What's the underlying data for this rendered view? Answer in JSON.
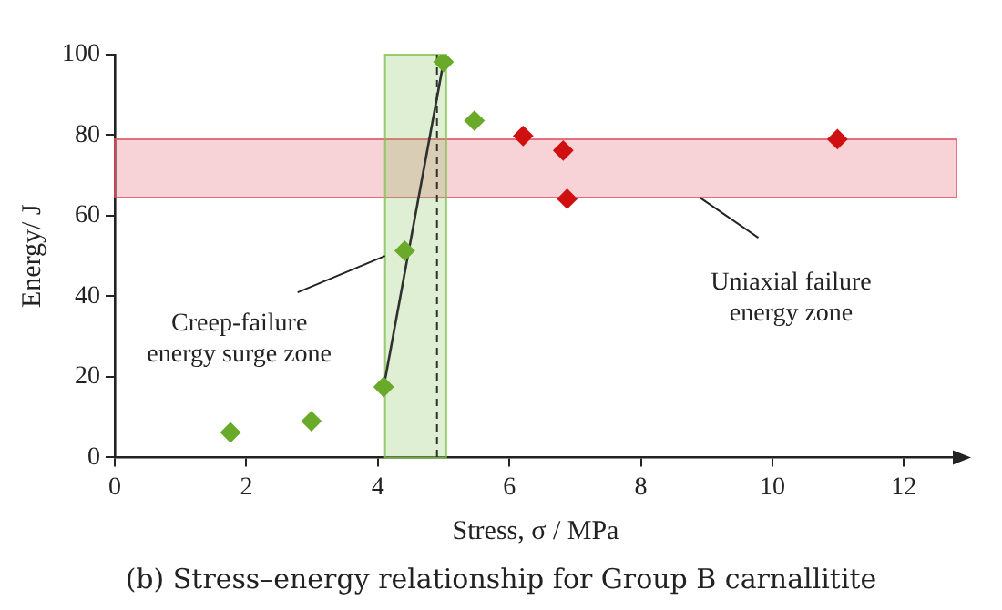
{
  "chart_data": {
    "type": "scatter",
    "title": "(b) Stress–energy relationship for Group B carnallitite",
    "xlabel": "Stress, σ / MPa",
    "ylabel": "Energy/ J",
    "xlim": [
      0,
      12.8
    ],
    "ylim": [
      0,
      100
    ],
    "xticks": [
      0,
      2,
      4,
      6,
      8,
      10,
      12
    ],
    "yticks": [
      0,
      20,
      40,
      60,
      80,
      100
    ],
    "grid": false,
    "legend": false,
    "marker": "diamond",
    "series": [
      {
        "color": "#6aaa2a",
        "x": [
          1.76,
          2.99,
          4.09,
          4.41,
          5.0,
          5.47
        ],
        "values": [
          6.2,
          9,
          17.5,
          51.3,
          98.2,
          83.6
        ]
      },
      {
        "color": "#d01010",
        "x": [
          6.21,
          6.82,
          6.88,
          10.99
        ],
        "values": [
          79.8,
          76.2,
          64.2,
          79
        ]
      },
      {
        "type": "line",
        "marker": "none",
        "color": "#303030",
        "x": [
          4.09,
          5.0
        ],
        "values": [
          17.5,
          98.2
        ]
      }
    ],
    "bands": [
      {
        "axis": "y",
        "from": 64.5,
        "to": 79,
        "color": "#e05060"
      },
      {
        "axis": "x",
        "from": 4.11,
        "to": 5.04,
        "color": "#80c050"
      }
    ],
    "ref_lines": [
      {
        "axis": "x",
        "value": 4.9,
        "color": "#303030",
        "line_style": "dashed"
      }
    ],
    "annotations": [
      {
        "text": "Creep-failure\nenergy surge zone",
        "x": 4.11,
        "y": 50
      },
      {
        "text": "Uniaxial failure\nenergy zone",
        "x": 8.9,
        "y": 64.5
      }
    ]
  }
}
